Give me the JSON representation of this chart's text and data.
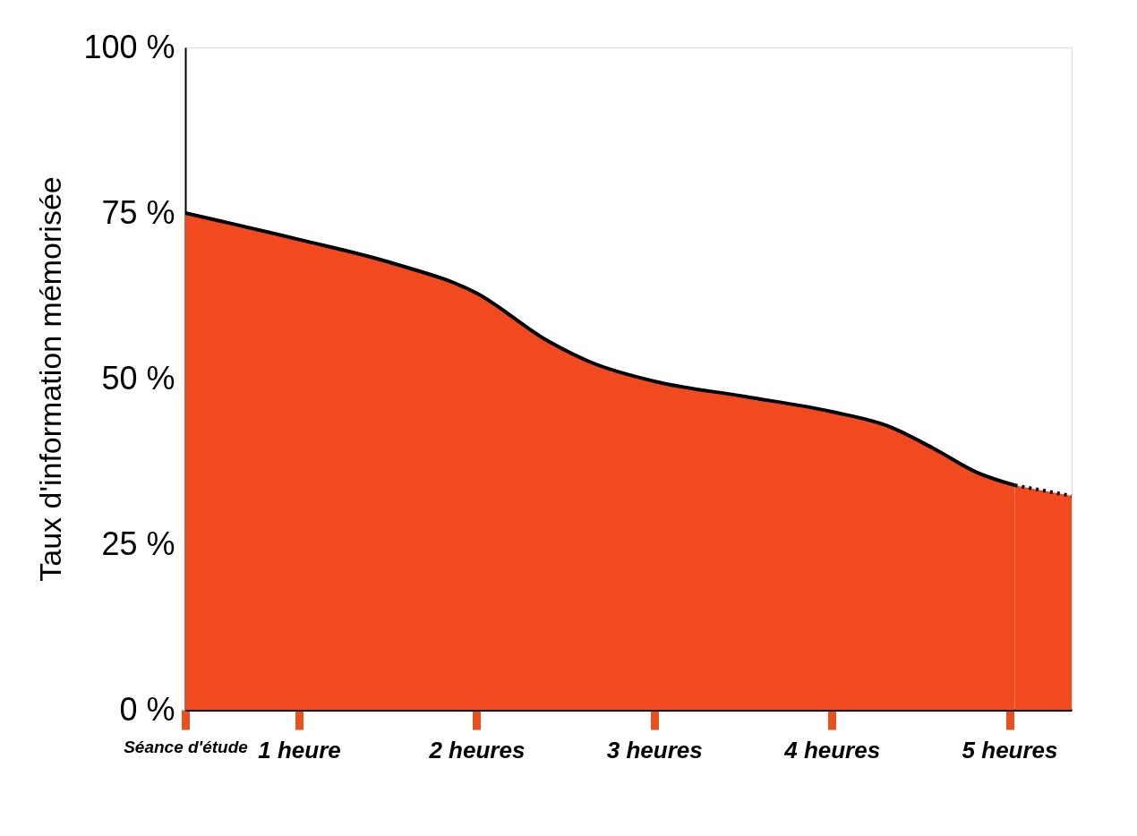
{
  "chart_data": {
    "type": "area",
    "ylabel": "Taux d'information mémorisée",
    "xlim": [
      0.36,
      5.35
    ],
    "ylim": [
      0,
      100
    ],
    "xticks": [
      {
        "value": 0.36,
        "label": "Séance d'étude"
      },
      {
        "value": 1,
        "label": "1 heure"
      },
      {
        "value": 2,
        "label": "2 heures"
      },
      {
        "value": 3,
        "label": "3 heures"
      },
      {
        "value": 4,
        "label": "4 heures"
      },
      {
        "value": 5,
        "label": "5 heures"
      }
    ],
    "yticks": [
      {
        "value": 0,
        "label": "0 %"
      },
      {
        "value": 25,
        "label": "25 %"
      },
      {
        "value": 50,
        "label": "50 %"
      },
      {
        "value": 75,
        "label": "75 %"
      },
      {
        "value": 100,
        "label": "100 %"
      }
    ],
    "grid": false,
    "series": [
      {
        "color": "#f04a1e",
        "line_style": "solid",
        "x": [
          0.36,
          1,
          1.53,
          2,
          2.4,
          2.64,
          3,
          3.51,
          4,
          4.33,
          4.57,
          4.82,
          5.03
        ],
        "values": [
          75,
          71,
          67.4,
          62.9,
          55.7,
          52.5,
          49.6,
          47.3,
          45,
          42.7,
          39.5,
          35.8,
          33.9
        ]
      },
      {
        "color": "#f04a1e",
        "line_style": "dotted",
        "x": [
          5.03,
          5.35
        ],
        "values": [
          33.9,
          32.3
        ]
      }
    ]
  }
}
